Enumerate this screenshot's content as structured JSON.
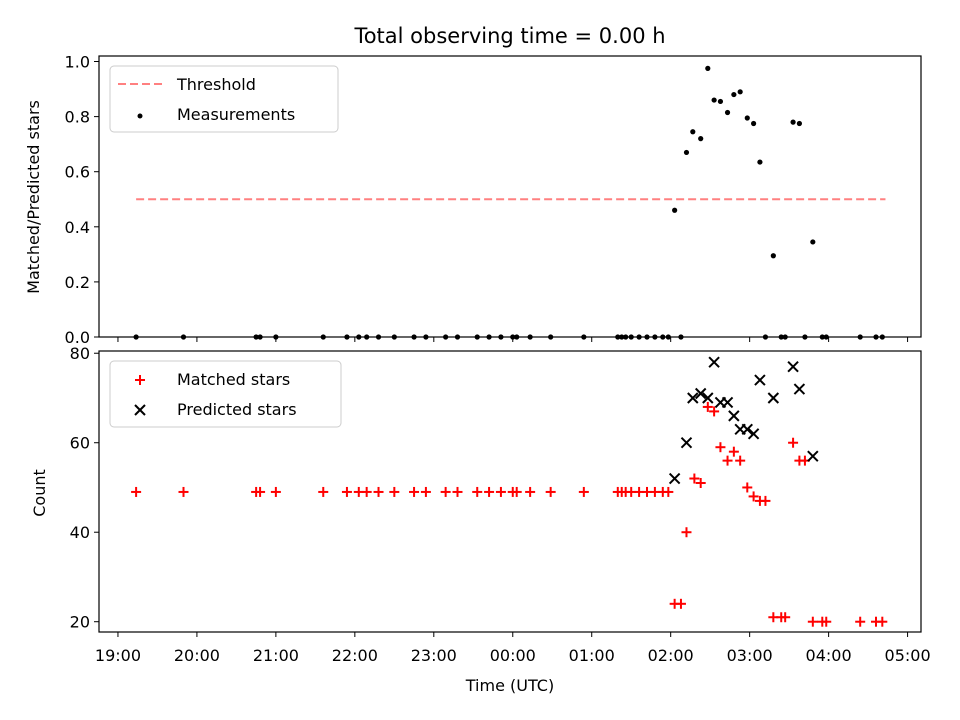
{
  "chart_data": [
    {
      "type": "scatter",
      "title": "Total observing time = 0.00 h",
      "xlabel": "",
      "ylabel": "Matched/Predicted stars",
      "ylim": [
        0.0,
        1.02
      ],
      "yticks": [
        "0.0",
        "0.2",
        "0.4",
        "0.6",
        "0.8",
        "1.0"
      ],
      "xlim": [
        18.76,
        29.17
      ],
      "legend_position": "upper-left",
      "threshold": {
        "name": "Threshold",
        "value": 0.5,
        "x_range": [
          19.23,
          28.72
        ],
        "color": "#ff8080",
        "style": "dashed"
      },
      "series": [
        {
          "name": "Measurements",
          "color": "#000000",
          "marker": "dot",
          "points": [
            [
              19.23,
              0.0
            ],
            [
              19.83,
              0.0
            ],
            [
              20.75,
              0.0
            ],
            [
              20.8,
              0.0
            ],
            [
              21.0,
              0.0
            ],
            [
              21.6,
              0.0
            ],
            [
              21.9,
              0.0
            ],
            [
              22.05,
              0.0
            ],
            [
              22.15,
              0.0
            ],
            [
              22.3,
              0.0
            ],
            [
              22.5,
              0.0
            ],
            [
              22.75,
              0.0
            ],
            [
              22.9,
              0.0
            ],
            [
              23.15,
              0.0
            ],
            [
              23.3,
              0.0
            ],
            [
              23.55,
              0.0
            ],
            [
              23.7,
              0.0
            ],
            [
              23.85,
              0.0
            ],
            [
              24.0,
              0.0
            ],
            [
              24.05,
              0.0
            ],
            [
              24.22,
              0.0
            ],
            [
              24.48,
              0.0
            ],
            [
              24.9,
              0.0
            ],
            [
              25.33,
              0.0
            ],
            [
              25.38,
              0.0
            ],
            [
              25.43,
              0.0
            ],
            [
              25.5,
              0.0
            ],
            [
              25.6,
              0.0
            ],
            [
              25.7,
              0.0
            ],
            [
              25.8,
              0.0
            ],
            [
              25.9,
              0.0
            ],
            [
              25.97,
              0.0
            ],
            [
              26.13,
              0.0
            ],
            [
              26.05,
              0.46
            ],
            [
              26.2,
              0.67
            ],
            [
              26.28,
              0.745
            ],
            [
              26.38,
              0.72
            ],
            [
              26.47,
              0.975
            ],
            [
              26.55,
              0.86
            ],
            [
              26.63,
              0.855
            ],
            [
              26.72,
              0.815
            ],
            [
              26.8,
              0.88
            ],
            [
              26.88,
              0.89
            ],
            [
              26.97,
              0.795
            ],
            [
              27.05,
              0.775
            ],
            [
              27.13,
              0.635
            ],
            [
              27.3,
              0.295
            ],
            [
              27.55,
              0.78
            ],
            [
              27.63,
              0.775
            ],
            [
              27.8,
              0.345
            ],
            [
              27.2,
              0.0
            ],
            [
              27.4,
              0.0
            ],
            [
              27.45,
              0.0
            ],
            [
              27.7,
              0.0
            ],
            [
              27.92,
              0.0
            ],
            [
              27.97,
              0.0
            ],
            [
              28.4,
              0.0
            ],
            [
              28.6,
              0.0
            ],
            [
              28.68,
              0.0
            ]
          ]
        }
      ]
    },
    {
      "type": "scatter",
      "title": "",
      "xlabel": "Time (UTC)",
      "ylabel": "Count",
      "ylim": [
        17.7,
        80.5
      ],
      "yticks": [
        "20",
        "40",
        "60",
        "80"
      ],
      "xlim": [
        18.76,
        29.17
      ],
      "xticks": [
        "19:00",
        "20:00",
        "21:00",
        "22:00",
        "23:00",
        "00:00",
        "01:00",
        "02:00",
        "03:00",
        "04:00",
        "05:00"
      ],
      "legend_position": "upper-left",
      "series": [
        {
          "name": "Matched stars",
          "color": "#ff0000",
          "marker": "plus",
          "points": [
            [
              19.23,
              49
            ],
            [
              19.83,
              49
            ],
            [
              20.75,
              49
            ],
            [
              20.8,
              49
            ],
            [
              21.0,
              49
            ],
            [
              21.6,
              49
            ],
            [
              21.9,
              49
            ],
            [
              22.05,
              49
            ],
            [
              22.15,
              49
            ],
            [
              22.3,
              49
            ],
            [
              22.5,
              49
            ],
            [
              22.75,
              49
            ],
            [
              22.9,
              49
            ],
            [
              23.15,
              49
            ],
            [
              23.3,
              49
            ],
            [
              23.55,
              49
            ],
            [
              23.7,
              49
            ],
            [
              23.85,
              49
            ],
            [
              24.0,
              49
            ],
            [
              24.05,
              49
            ],
            [
              24.22,
              49
            ],
            [
              24.48,
              49
            ],
            [
              24.9,
              49
            ],
            [
              25.33,
              49
            ],
            [
              25.38,
              49
            ],
            [
              25.43,
              49
            ],
            [
              25.5,
              49
            ],
            [
              25.6,
              49
            ],
            [
              25.7,
              49
            ],
            [
              25.8,
              49
            ],
            [
              25.9,
              49
            ],
            [
              25.97,
              49
            ],
            [
              26.05,
              24
            ],
            [
              26.13,
              24
            ],
            [
              26.2,
              40
            ],
            [
              26.3,
              52
            ],
            [
              26.38,
              51
            ],
            [
              26.47,
              68
            ],
            [
              26.55,
              67
            ],
            [
              26.63,
              59
            ],
            [
              26.72,
              56
            ],
            [
              26.8,
              58
            ],
            [
              26.88,
              56
            ],
            [
              26.97,
              50
            ],
            [
              27.05,
              48
            ],
            [
              27.13,
              47
            ],
            [
              27.2,
              47
            ],
            [
              27.3,
              21
            ],
            [
              27.4,
              21
            ],
            [
              27.45,
              21
            ],
            [
              27.55,
              60
            ],
            [
              27.63,
              56
            ],
            [
              27.7,
              56
            ],
            [
              27.8,
              20
            ],
            [
              27.92,
              20
            ],
            [
              27.97,
              20
            ],
            [
              28.4,
              20
            ],
            [
              28.6,
              20
            ],
            [
              28.68,
              20
            ]
          ]
        },
        {
          "name": "Predicted stars",
          "color": "#000000",
          "marker": "x",
          "points": [
            [
              26.05,
              52
            ],
            [
              26.2,
              60
            ],
            [
              26.28,
              70
            ],
            [
              26.38,
              71
            ],
            [
              26.47,
              70
            ],
            [
              26.55,
              78
            ],
            [
              26.63,
              69
            ],
            [
              26.72,
              69
            ],
            [
              26.8,
              66
            ],
            [
              26.88,
              63
            ],
            [
              26.97,
              63
            ],
            [
              27.05,
              62
            ],
            [
              27.13,
              74
            ],
            [
              27.3,
              70
            ],
            [
              27.55,
              77
            ],
            [
              27.63,
              72
            ],
            [
              27.8,
              57
            ]
          ]
        }
      ]
    }
  ]
}
